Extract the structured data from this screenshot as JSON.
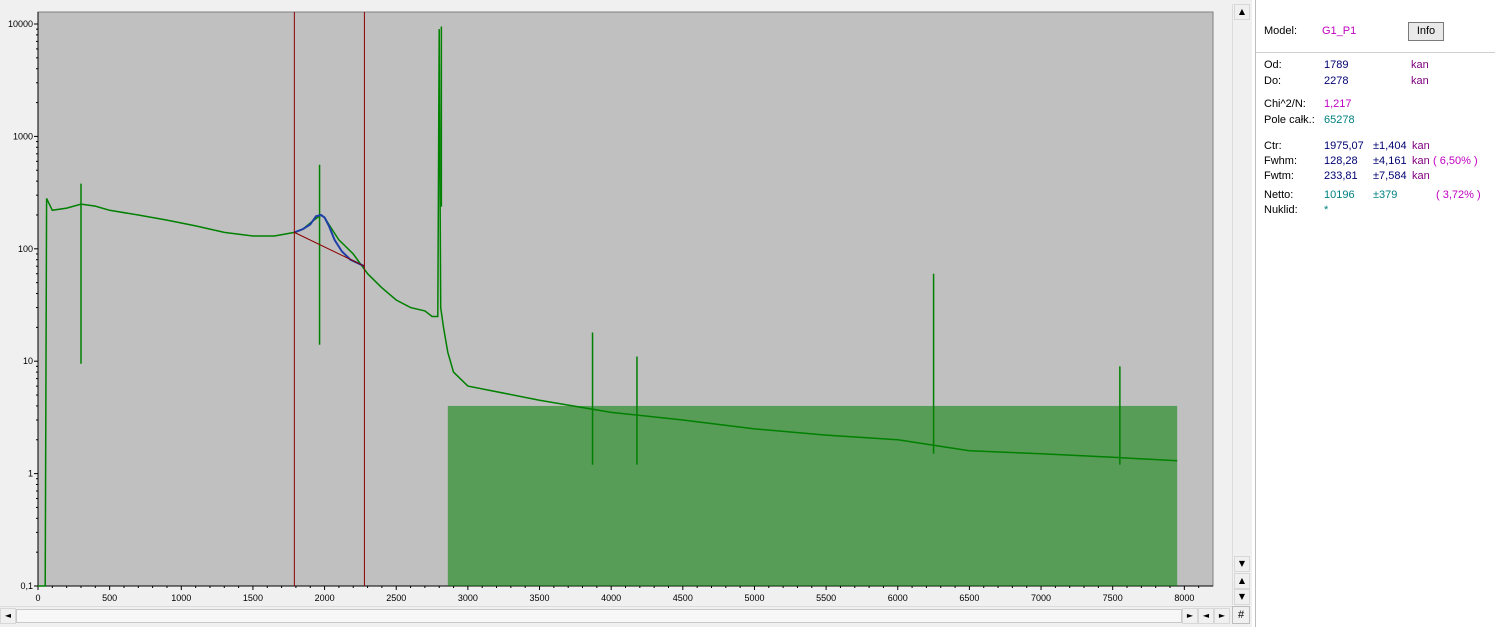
{
  "chart_data": {
    "type": "line",
    "y_scale": "log",
    "grid": false,
    "background_color": "#c0c0c0",
    "series_color": "#008000",
    "fit_color": "#1f3fa8",
    "marker_color": "#8b0000",
    "xlim": [
      0,
      8200
    ],
    "ylim": [
      0.1,
      10000
    ],
    "x_ticks": [
      "0",
      "500",
      "1000",
      "1500",
      "2000",
      "2500",
      "3000",
      "3500",
      "4000",
      "4500",
      "5000",
      "5500",
      "6000",
      "6500",
      "7000",
      "7500",
      "8000"
    ],
    "x_tick_values": [
      0,
      500,
      1000,
      1500,
      2000,
      2500,
      3000,
      3500,
      4000,
      4500,
      5000,
      5500,
      6000,
      6500,
      7000,
      7500,
      8000
    ],
    "y_ticks": [
      "0,1",
      "1",
      "10",
      "100",
      "1000",
      "10000"
    ],
    "y_tick_values": [
      0.1,
      1,
      10,
      100,
      1000,
      10000
    ],
    "markers_x": [
      1789,
      2278
    ],
    "spectrum": {
      "x": [
        0,
        50,
        60,
        100,
        200,
        300,
        400,
        500,
        700,
        900,
        1100,
        1300,
        1500,
        1650,
        1789,
        1850,
        1900,
        1950,
        1975,
        2000,
        2050,
        2100,
        2200,
        2300,
        2400,
        2500,
        2600,
        2700,
        2750,
        2790,
        2800,
        2810,
        2830,
        2860,
        2900,
        3000,
        3500,
        4000,
        4500,
        5000,
        5500,
        6000,
        6500,
        7000,
        7500,
        7950
      ],
      "y": [
        0.1,
        0.1,
        280,
        220,
        230,
        250,
        240,
        220,
        200,
        180,
        160,
        140,
        130,
        130,
        140,
        150,
        170,
        190,
        200,
        190,
        150,
        120,
        90,
        60,
        45,
        35,
        30,
        28,
        25,
        25,
        9000,
        30,
        20,
        12,
        8,
        6,
        4.5,
        3.5,
        3,
        2.5,
        2.2,
        2,
        1.6,
        1.5,
        1.4,
        1.3
      ]
    },
    "peaks": {
      "x": [
        300,
        1965,
        2815,
        3870,
        4180,
        6250,
        7550
      ],
      "y": [
        380,
        560,
        9500,
        18,
        11,
        60,
        9
      ]
    },
    "fit_curve": {
      "x": [
        1789,
        1850,
        1900,
        1940,
        1975,
        2000,
        2030,
        2070,
        2120,
        2180,
        2278
      ],
      "y": [
        140,
        150,
        165,
        195,
        200,
        190,
        160,
        120,
        95,
        80,
        70
      ]
    }
  },
  "panel": {
    "model_label": "Model:",
    "model_value": "G1_P1",
    "info_button": "Info",
    "od_label": "Od:",
    "od_value": "1789",
    "od_unit": "kan",
    "do_label": "Do:",
    "do_value": "2278",
    "do_unit": "kan",
    "chi_label": "Chi^2/N:",
    "chi_value": "1,217",
    "pole_label": "Pole całk.:",
    "pole_value": "65278",
    "ctr_label": "Ctr:",
    "ctr_value": "1975,07",
    "ctr_err": "±1,404",
    "ctr_unit": "kan",
    "fwhm_label": "Fwhm:",
    "fwhm_value": "128,28",
    "fwhm_err": "±4,161",
    "fwhm_unit": "kan",
    "fwhm_pct": "( 6,50% )",
    "fwtm_label": "Fwtm:",
    "fwtm_value": "233,81",
    "fwtm_err": "±7,584",
    "fwtm_unit": "kan",
    "netto_label": "Netto:",
    "netto_value": "10196",
    "netto_err": "±379",
    "netto_pct": "( 3,72% )",
    "nuklid_label": "Nuklid:",
    "nuklid_value": "*"
  },
  "scroll": {
    "up_icon": "▲",
    "down_icon": "▼",
    "left_icon": "◄",
    "right_icon": "►",
    "corner_label": "#"
  }
}
